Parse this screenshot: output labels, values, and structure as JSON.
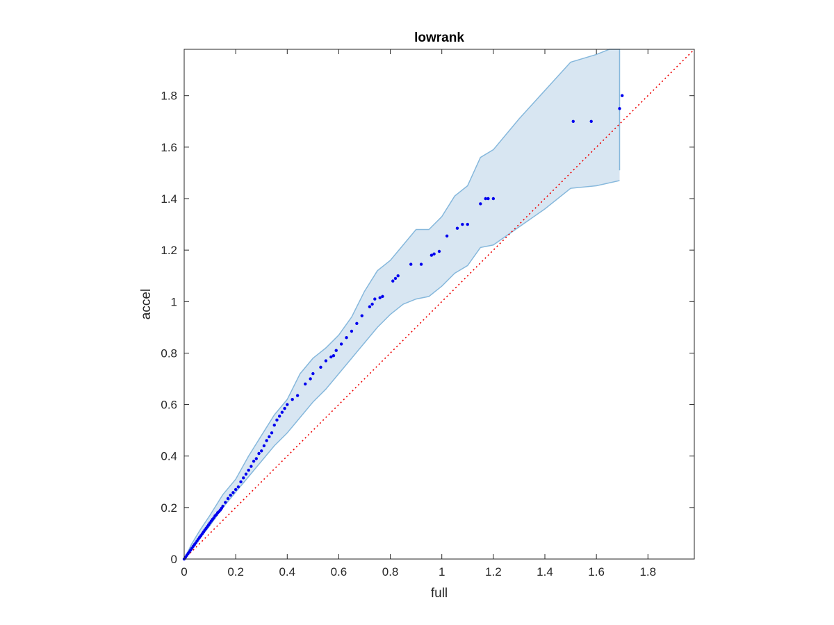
{
  "chart_data": {
    "type": "scatter",
    "title": "lowrank",
    "xlabel": "full",
    "ylabel": "accel",
    "xlim": [
      0,
      1.98
    ],
    "ylim": [
      0,
      1.98
    ],
    "xticks": [
      "0",
      "0.2",
      "0.4",
      "0.6",
      "0.8",
      "1",
      "1.2",
      "1.4",
      "1.6",
      "1.8"
    ],
    "yticks": [
      "0",
      "0.2",
      "0.4",
      "0.6",
      "0.8",
      "1",
      "1.2",
      "1.4",
      "1.6",
      "1.8"
    ],
    "xtick_values": [
      0,
      0.2,
      0.4,
      0.6,
      0.8,
      1.0,
      1.2,
      1.4,
      1.6,
      1.8
    ],
    "ytick_values": [
      0,
      0.2,
      0.4,
      0.6,
      0.8,
      1.0,
      1.2,
      1.4,
      1.6,
      1.8
    ],
    "grid": false,
    "colors": {
      "points": "#0000ee",
      "band_fill": "#d8e6f2",
      "band_edge": "#86b8dc",
      "reference": "#ee0000",
      "axes": "#262626"
    },
    "reference_line": {
      "style": "dotted",
      "x": [
        0,
        1.98
      ],
      "y": [
        0,
        1.98
      ]
    },
    "band": {
      "upper": [
        [
          0,
          0
        ],
        [
          0.03,
          0.06
        ],
        [
          0.06,
          0.11
        ],
        [
          0.1,
          0.17
        ],
        [
          0.15,
          0.25
        ],
        [
          0.2,
          0.31
        ],
        [
          0.25,
          0.4
        ],
        [
          0.3,
          0.48
        ],
        [
          0.35,
          0.56
        ],
        [
          0.4,
          0.62
        ],
        [
          0.45,
          0.72
        ],
        [
          0.5,
          0.78
        ],
        [
          0.55,
          0.82
        ],
        [
          0.6,
          0.87
        ],
        [
          0.65,
          0.94
        ],
        [
          0.7,
          1.04
        ],
        [
          0.75,
          1.12
        ],
        [
          0.8,
          1.16
        ],
        [
          0.85,
          1.22
        ],
        [
          0.9,
          1.28
        ],
        [
          0.95,
          1.28
        ],
        [
          1.0,
          1.33
        ],
        [
          1.05,
          1.41
        ],
        [
          1.1,
          1.45
        ],
        [
          1.15,
          1.56
        ],
        [
          1.2,
          1.59
        ],
        [
          1.3,
          1.71
        ],
        [
          1.4,
          1.82
        ],
        [
          1.5,
          1.93
        ],
        [
          1.6,
          1.96
        ],
        [
          1.65,
          1.98
        ],
        [
          1.69,
          1.98
        ],
        [
          1.69,
          1.51
        ]
      ],
      "lower": [
        [
          0,
          0
        ],
        [
          0.03,
          0.04
        ],
        [
          0.06,
          0.08
        ],
        [
          0.1,
          0.13
        ],
        [
          0.15,
          0.2
        ],
        [
          0.2,
          0.26
        ],
        [
          0.25,
          0.32
        ],
        [
          0.3,
          0.38
        ],
        [
          0.35,
          0.44
        ],
        [
          0.4,
          0.49
        ],
        [
          0.45,
          0.55
        ],
        [
          0.5,
          0.61
        ],
        [
          0.55,
          0.66
        ],
        [
          0.6,
          0.72
        ],
        [
          0.65,
          0.78
        ],
        [
          0.7,
          0.84
        ],
        [
          0.75,
          0.9
        ],
        [
          0.8,
          0.95
        ],
        [
          0.85,
          0.99
        ],
        [
          0.9,
          1.01
        ],
        [
          0.95,
          1.02
        ],
        [
          1.0,
          1.06
        ],
        [
          1.05,
          1.11
        ],
        [
          1.1,
          1.14
        ],
        [
          1.15,
          1.21
        ],
        [
          1.2,
          1.22
        ],
        [
          1.3,
          1.29
        ],
        [
          1.4,
          1.36
        ],
        [
          1.5,
          1.44
        ],
        [
          1.6,
          1.45
        ],
        [
          1.69,
          1.47
        ]
      ]
    },
    "series": [
      {
        "x": [
          0,
          0.005,
          0.01,
          0.015,
          0.02,
          0.025,
          0.03,
          0.035,
          0.04,
          0.045,
          0.05,
          0.055,
          0.06,
          0.065,
          0.07,
          0.075,
          0.08,
          0.085,
          0.09,
          0.095,
          0.1,
          0.105,
          0.11,
          0.115,
          0.12,
          0.125,
          0.13,
          0.135,
          0.14,
          0.145,
          0.15,
          0.16,
          0.17,
          0.18,
          0.19,
          0.2,
          0.21,
          0.22,
          0.23,
          0.24,
          0.25,
          0.26,
          0.27,
          0.28,
          0.29,
          0.3,
          0.31,
          0.32,
          0.33,
          0.34,
          0.35,
          0.36,
          0.37,
          0.38,
          0.39,
          0.4,
          0.42,
          0.44,
          0.47,
          0.49,
          0.5,
          0.53,
          0.55,
          0.57,
          0.58,
          0.59,
          0.61,
          0.63,
          0.65,
          0.67,
          0.69,
          0.72,
          0.73,
          0.74,
          0.76,
          0.77,
          0.81,
          0.82,
          0.83,
          0.88,
          0.92,
          0.96,
          0.97,
          0.99,
          1.02,
          1.06,
          1.08,
          1.1,
          1.15,
          1.17,
          1.18,
          1.2,
          1.51,
          1.58,
          1.69,
          1.7
        ],
        "y": [
          0,
          0.007,
          0.014,
          0.021,
          0.028,
          0.035,
          0.042,
          0.049,
          0.056,
          0.063,
          0.07,
          0.077,
          0.084,
          0.091,
          0.098,
          0.105,
          0.112,
          0.119,
          0.126,
          0.133,
          0.14,
          0.147,
          0.154,
          0.16,
          0.168,
          0.172,
          0.18,
          0.184,
          0.19,
          0.197,
          0.205,
          0.22,
          0.235,
          0.248,
          0.258,
          0.27,
          0.28,
          0.3,
          0.315,
          0.33,
          0.345,
          0.36,
          0.38,
          0.39,
          0.41,
          0.42,
          0.44,
          0.46,
          0.475,
          0.49,
          0.52,
          0.54,
          0.555,
          0.57,
          0.585,
          0.6,
          0.62,
          0.635,
          0.68,
          0.7,
          0.72,
          0.745,
          0.77,
          0.785,
          0.79,
          0.81,
          0.835,
          0.86,
          0.885,
          0.915,
          0.945,
          0.98,
          0.99,
          1.01,
          1.015,
          1.02,
          1.08,
          1.09,
          1.1,
          1.145,
          1.145,
          1.18,
          1.185,
          1.195,
          1.255,
          1.285,
          1.3,
          1.3,
          1.38,
          1.4,
          1.4,
          1.4,
          1.7,
          1.7,
          1.75,
          1.8
        ]
      }
    ]
  }
}
